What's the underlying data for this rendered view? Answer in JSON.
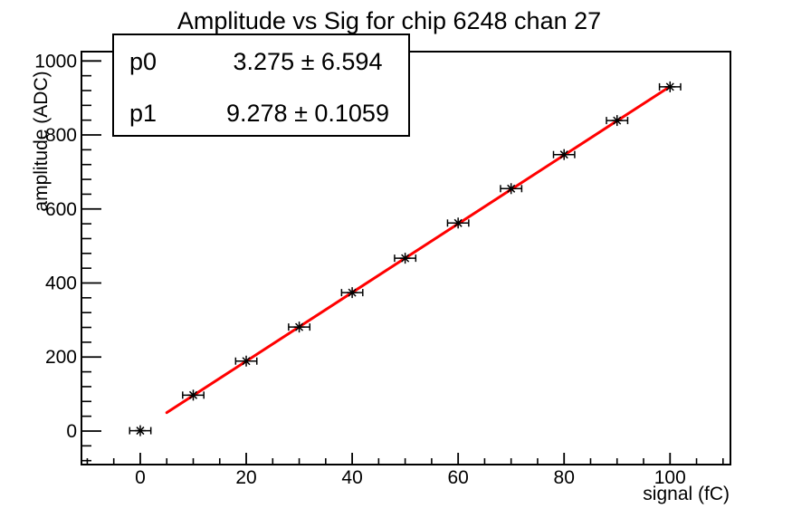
{
  "window": {
    "background": "#ffffff"
  },
  "chart_data": {
    "type": "scatter",
    "title": "Amplitude vs Sig for chip 6248 chan 27",
    "xlabel": "signal (fC)",
    "ylabel": "amplitude (ADC)",
    "x": [
      0,
      10,
      20,
      30,
      40,
      50,
      60,
      70,
      80,
      90,
      100
    ],
    "y": [
      1,
      97,
      189,
      281,
      374,
      467,
      562,
      655,
      747,
      839,
      930
    ],
    "x_error": 2,
    "xlim": [
      -11.1,
      111.4
    ],
    "ylim": [
      -90.6,
      1025.2
    ],
    "x_major_ticks": [
      0,
      20,
      40,
      60,
      80,
      100
    ],
    "y_major_ticks": [
      0,
      200,
      400,
      600,
      800,
      1000
    ],
    "x_minor_step": 5,
    "y_minor_step": 40,
    "grid": false,
    "legend": false,
    "marker": "asterisk",
    "marker_color": "#000000",
    "axis_color": "#000000",
    "fit": {
      "type": "linear",
      "p0": 3.275,
      "p1": 9.278,
      "x_start": 5,
      "x_end": 100,
      "color": "#ff0000",
      "line_width": 3
    }
  },
  "stats_box": {
    "rows": [
      {
        "param": "p0",
        "value": "3.275 ± 6.594"
      },
      {
        "param": "p1",
        "value": "9.278 ± 0.1059"
      }
    ]
  }
}
